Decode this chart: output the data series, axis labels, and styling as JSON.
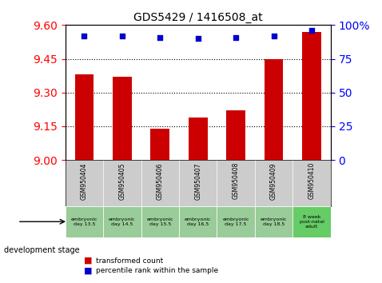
{
  "title": "GDS5429 / 1416508_at",
  "samples": [
    "GSM950404",
    "GSM950405",
    "GSM950406",
    "GSM950407",
    "GSM950408",
    "GSM950409",
    "GSM950410"
  ],
  "dev_stage_labels": [
    "embryonic\nday 13.5",
    "embryonic\nday 14.5",
    "embryonic\nday 15.5",
    "embryonic\nday 16.5",
    "embryonic\nday 17.5",
    "embryonic\nday 18.5",
    "8 week\npost-natal\nadult"
  ],
  "transformed_count": [
    9.38,
    9.37,
    9.14,
    9.19,
    9.22,
    9.45,
    9.57
  ],
  "percentile_rank": [
    92,
    92,
    91,
    90,
    91,
    92,
    96
  ],
  "ylim_left": [
    9.0,
    9.6
  ],
  "ylim_right": [
    0,
    100
  ],
  "yticks_left": [
    9.0,
    9.15,
    9.3,
    9.45,
    9.6
  ],
  "yticks_right": [
    0,
    25,
    50,
    75,
    100
  ],
  "bar_color": "#cc0000",
  "dot_color": "#0000cc",
  "bar_width": 0.5,
  "grid_lines": [
    9.15,
    9.3,
    9.45
  ],
  "sample_bg_color": "#cccccc",
  "dev_stage_bg_colors": [
    "#99cc99",
    "#99cc99",
    "#99cc99",
    "#99cc99",
    "#99cc99",
    "#99cc99",
    "#66cc66"
  ],
  "legend_bar_label": "transformed count",
  "legend_dot_label": "percentile rank within the sample",
  "dev_stage_arrow_label": "development stage"
}
